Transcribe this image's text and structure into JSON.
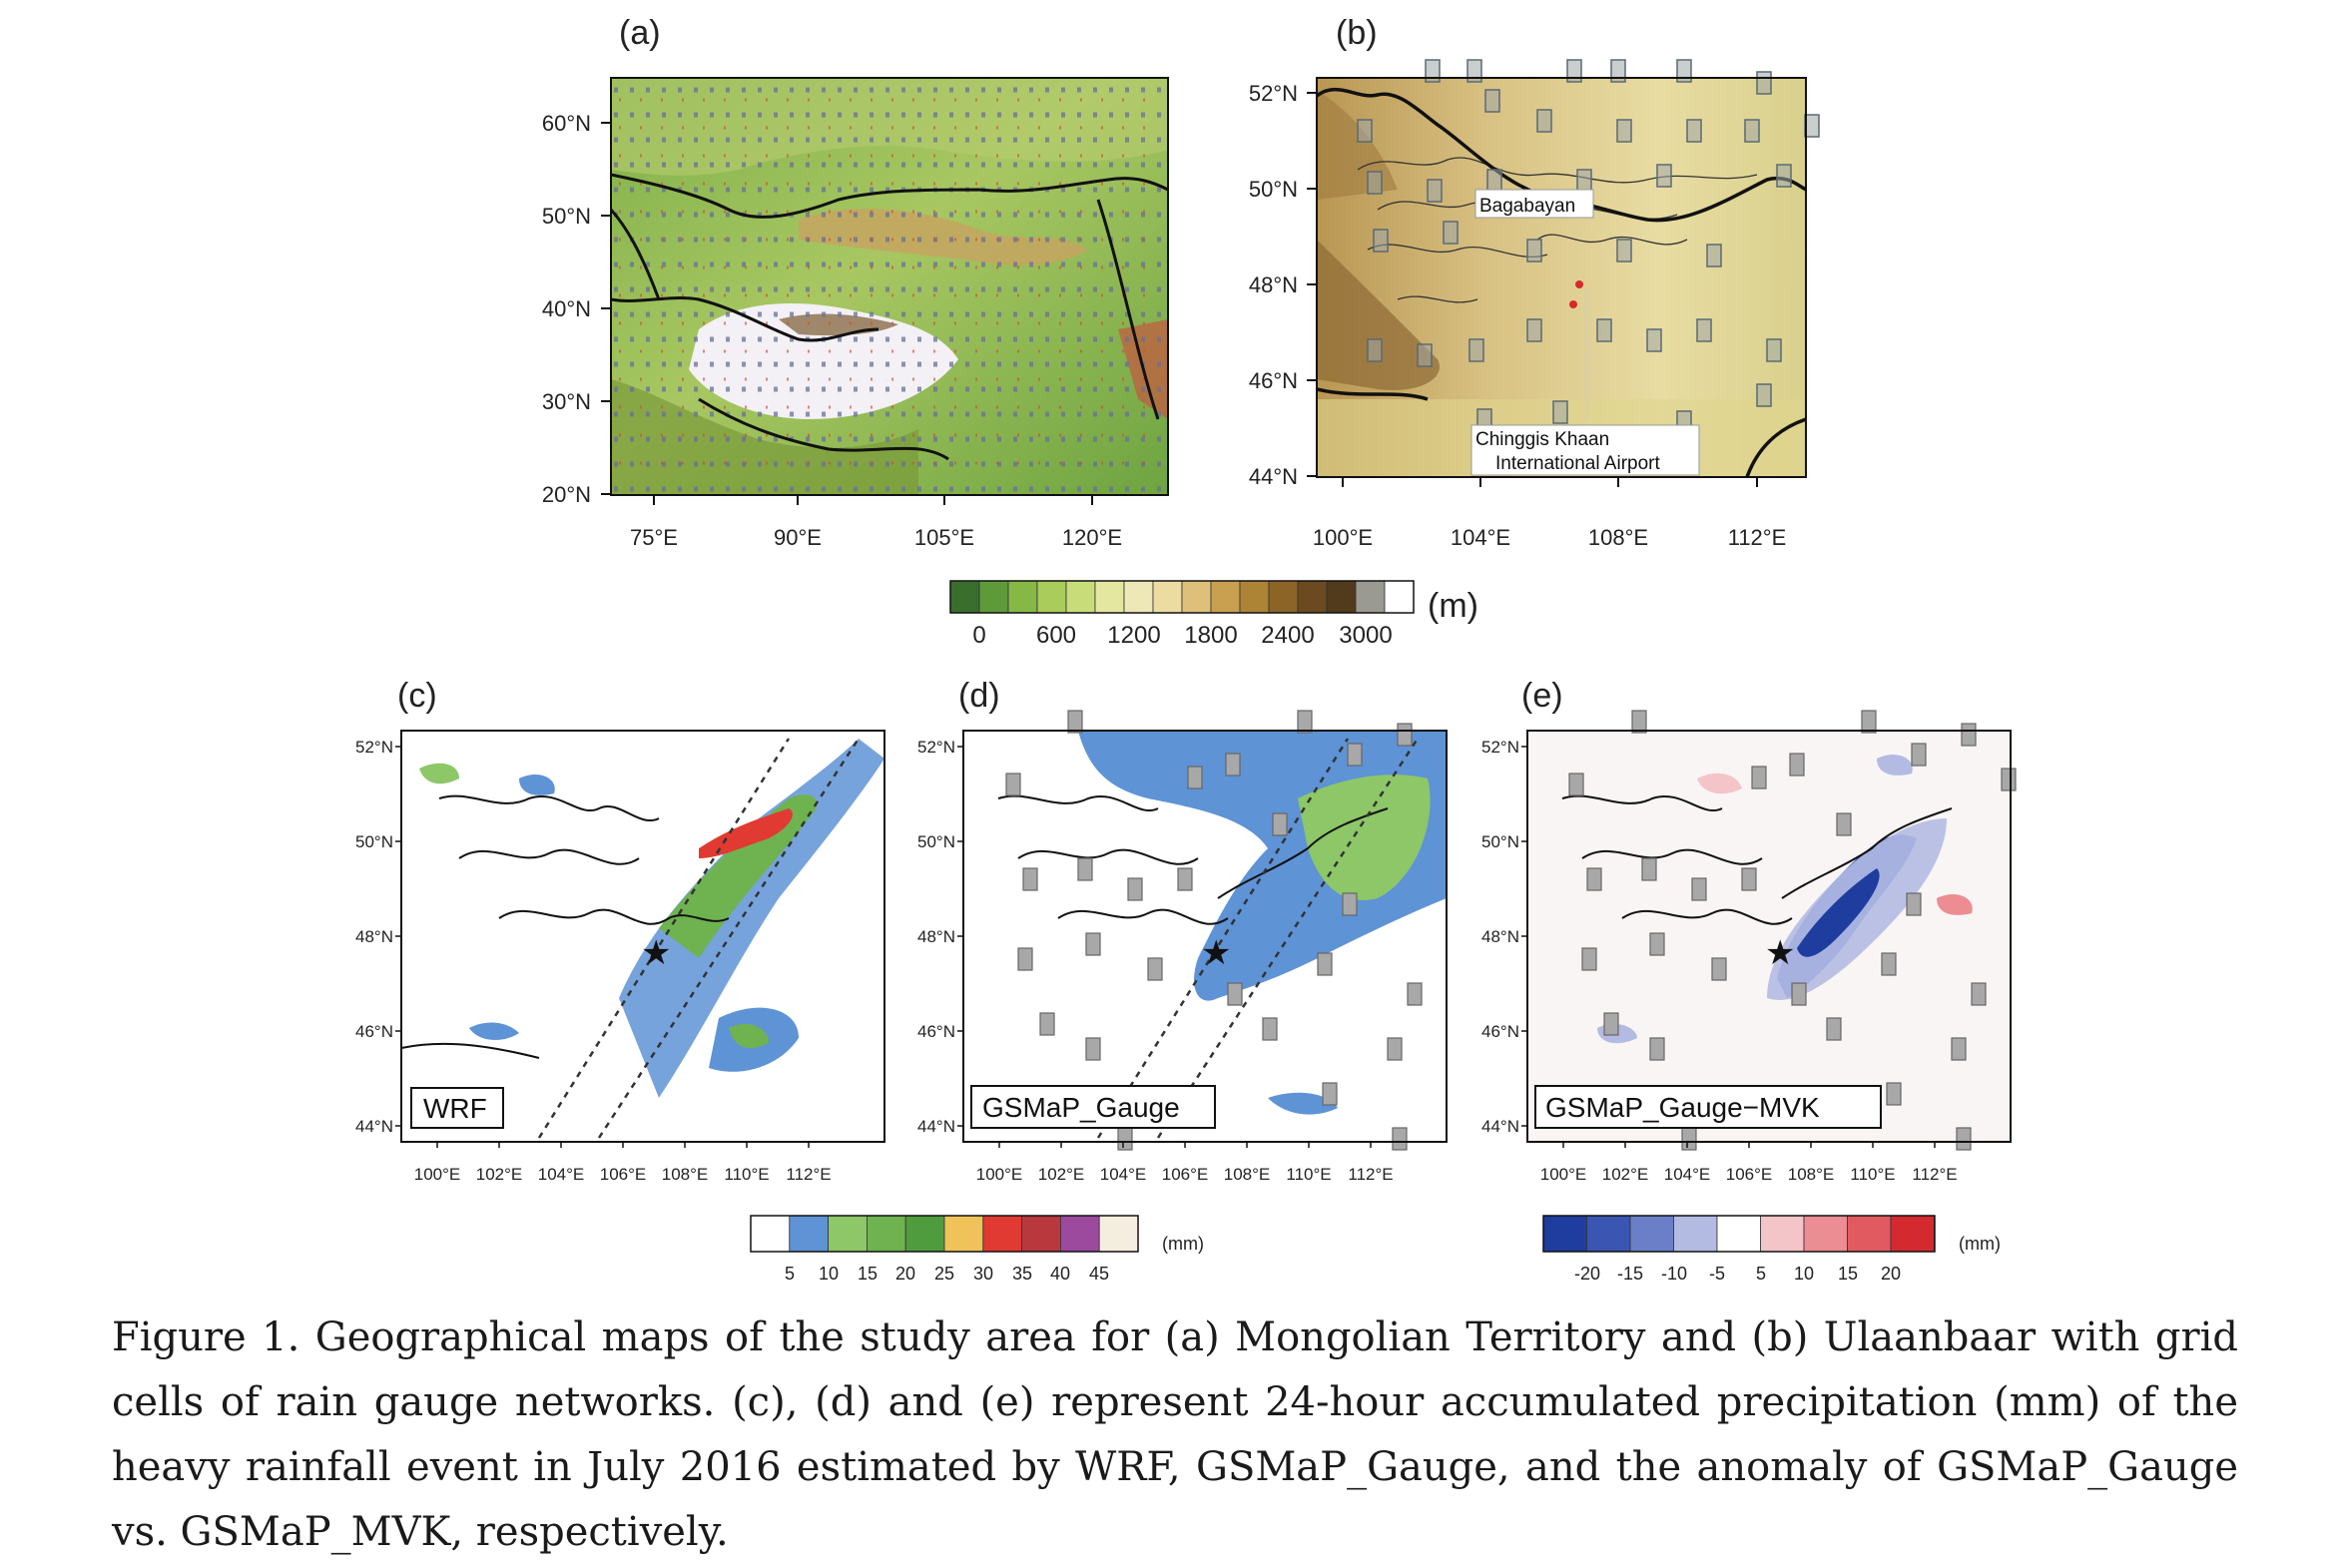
{
  "panels": {
    "a": {
      "letter": "(a)",
      "lat_ticks": [
        "60°N",
        "50°N",
        "40°N",
        "30°N",
        "20°N"
      ],
      "lon_ticks": [
        "75°E",
        "90°E",
        "105°E",
        "120°E"
      ]
    },
    "b": {
      "letter": "(b)",
      "lat_ticks": [
        "52°N",
        "50°N",
        "48°N",
        "46°N",
        "44°N"
      ],
      "lon_ticks": [
        "100°E",
        "104°E",
        "108°E",
        "112°E"
      ],
      "label_bagabayan": "Bagabayan",
      "label_airport_line1": "Chinggis Khaan",
      "label_airport_line2": "International Airport"
    },
    "c": {
      "letter": "(c)",
      "title": "WRF"
    },
    "d": {
      "letter": "(d)",
      "title": "GSMaP_Gauge"
    },
    "e": {
      "letter": "(e)",
      "title": "GSMaP_Gauge−MVK"
    },
    "small_lat_ticks": [
      "52°N",
      "50°N",
      "48°N",
      "46°N",
      "44°N"
    ],
    "small_lon_ticks": [
      "100°E",
      "102°E",
      "104°E",
      "106°E",
      "108°E",
      "110°E",
      "112°E"
    ]
  },
  "colorbars": {
    "elevation": {
      "unit": "(m)",
      "labels": [
        "0",
        "600",
        "1200",
        "1800",
        "2400",
        "3000"
      ],
      "colors": [
        "#3a6e2c",
        "#5f9a3a",
        "#86b845",
        "#a9cc5a",
        "#c9dc7a",
        "#e3e7a0",
        "#eee8b6",
        "#ecdca2",
        "#dfc07a",
        "#c9a050",
        "#ad8336",
        "#8d6427",
        "#6b4a20",
        "#523a1c",
        "#9a9a92",
        "#ffffff"
      ]
    },
    "precip": {
      "unit": "(mm)",
      "labels": [
        "5",
        "10",
        "15",
        "20",
        "25",
        "30",
        "35",
        "40",
        "45"
      ],
      "colors": [
        "#ffffff",
        "#5e93d6",
        "#8dc767",
        "#6eb34f",
        "#4f9c3e",
        "#f0c35a",
        "#e03a33",
        "#b8383e",
        "#9b4a9e",
        "#f5ede0"
      ]
    },
    "anomaly": {
      "unit": "(mm)",
      "labels": [
        "-20",
        "-15",
        "-10",
        "-5",
        "5",
        "10",
        "15",
        "20"
      ],
      "colors": [
        "#1e3d9e",
        "#3b55b3",
        "#6b7fc8",
        "#b3bbe3",
        "#ffffff",
        "#f4c5c8",
        "#eb8d92",
        "#e05a60",
        "#d42a2f"
      ]
    }
  },
  "caption": "Figure 1. Geographical maps of the study area for (a) Mongolian Territory and (b) Ulaanbaar with grid cells of rain gauge networks. (c), (d) and (e) represent 24-hour accumulated precipitation (mm) of the heavy rainfall event in July 2016 estimated by WRF, GSMaP_Gauge, and the anomaly of GSMaP_Gauge vs. GSMaP_MVK, respectively."
}
